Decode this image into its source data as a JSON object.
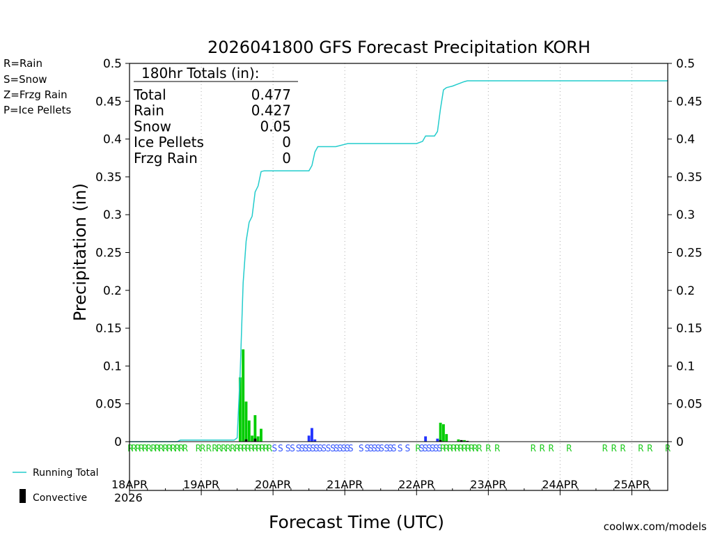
{
  "chart_data": {
    "type": "bar",
    "title": "2026041800 GFS Forecast Precipitation KORH",
    "xlabel": "Forecast Time (UTC)",
    "ylabel": "Precipitation (in)",
    "ylim": [
      0,
      0.5
    ],
    "xlim_hours": [
      0,
      180
    ],
    "y_ticks": [
      {
        "v": 0,
        "label": "0"
      },
      {
        "v": 0.05,
        "label": "0.05"
      },
      {
        "v": 0.1,
        "label": "0.1"
      },
      {
        "v": 0.15,
        "label": "0.15"
      },
      {
        "v": 0.2,
        "label": "0.2"
      },
      {
        "v": 0.25,
        "label": "0.25"
      },
      {
        "v": 0.3,
        "label": "0.3"
      },
      {
        "v": 0.35,
        "label": "0.35"
      },
      {
        "v": 0.4,
        "label": "0.4"
      },
      {
        "v": 0.45,
        "label": "0.45"
      },
      {
        "v": 0.5,
        "label": "0.5"
      }
    ],
    "x_ticks": [
      {
        "h": 0,
        "label": "18APR",
        "sub": "2026"
      },
      {
        "h": 24,
        "label": "19APR"
      },
      {
        "h": 48,
        "label": "20APR"
      },
      {
        "h": 72,
        "label": "21APR"
      },
      {
        "h": 96,
        "label": "22APR"
      },
      {
        "h": 120,
        "label": "23APR"
      },
      {
        "h": 144,
        "label": "24APR"
      },
      {
        "h": 168,
        "label": "25APR"
      }
    ],
    "legend": [
      {
        "label": "R=Rain",
        "color": "#22cc22"
      },
      {
        "label": "S=Snow",
        "color": "#3355ff"
      },
      {
        "label": "Z=Frzg Rain",
        "color": "#ff8833"
      },
      {
        "label": "P=Ice Pellets",
        "color": "#ee22aa"
      }
    ],
    "legend_bottom": {
      "running_total": "Running Total",
      "convective": "Convective"
    },
    "totals_box": {
      "header": "180hr Totals (in):",
      "rows": [
        {
          "label": "Total",
          "value": "0.477"
        },
        {
          "label": "Rain",
          "value": "0.427"
        },
        {
          "label": "Snow",
          "value": "0.05"
        },
        {
          "label": "Ice Pellets",
          "value": "0"
        },
        {
          "label": "Frzg Rain",
          "value": "0"
        }
      ]
    },
    "colors": {
      "rain": "#00cc00",
      "snow": "#2233ff",
      "convective": "#000000",
      "total": "#22cccc",
      "grid": "#aaaaaa"
    },
    "bars": [
      {
        "h": 37,
        "v": 0.085,
        "t": "rain"
      },
      {
        "h": 38,
        "v": 0.122,
        "t": "rain"
      },
      {
        "h": 39,
        "v": 0.053,
        "t": "rain"
      },
      {
        "h": 40,
        "v": 0.028,
        "t": "rain"
      },
      {
        "h": 41,
        "v": 0.008,
        "t": "rain"
      },
      {
        "h": 42,
        "v": 0.035,
        "t": "rain"
      },
      {
        "h": 43,
        "v": 0.007,
        "t": "rain"
      },
      {
        "h": 44,
        "v": 0.017,
        "t": "rain"
      },
      {
        "h": 60,
        "v": 0.008,
        "t": "snow"
      },
      {
        "h": 61,
        "v": 0.018,
        "t": "snow"
      },
      {
        "h": 62,
        "v": 0.003,
        "t": "snow"
      },
      {
        "h": 99,
        "v": 0.007,
        "t": "snow"
      },
      {
        "h": 103,
        "v": 0.004,
        "t": "snow"
      },
      {
        "h": 104,
        "v": 0.025,
        "t": "rain"
      },
      {
        "h": 105,
        "v": 0.023,
        "t": "rain"
      },
      {
        "h": 106,
        "v": 0.01,
        "t": "rain"
      },
      {
        "h": 110,
        "v": 0.003,
        "t": "rain"
      },
      {
        "h": 112,
        "v": 0.002,
        "t": "rain"
      }
    ],
    "convective_bars": [
      {
        "h": 39,
        "v": 0.003
      },
      {
        "h": 42,
        "v": 0.004
      },
      {
        "h": 104,
        "v": 0.002
      },
      {
        "h": 111,
        "v": 0.002
      },
      {
        "h": 113,
        "v": 0.001
      }
    ],
    "running_total": [
      [
        0,
        0.0
      ],
      [
        16,
        0.0
      ],
      [
        17,
        0.002
      ],
      [
        35,
        0.002
      ],
      [
        36,
        0.005
      ],
      [
        37,
        0.09
      ],
      [
        38,
        0.21
      ],
      [
        39,
        0.265
      ],
      [
        40,
        0.29
      ],
      [
        41,
        0.298
      ],
      [
        42,
        0.33
      ],
      [
        43,
        0.338
      ],
      [
        44,
        0.357
      ],
      [
        45,
        0.358
      ],
      [
        60,
        0.358
      ],
      [
        61,
        0.365
      ],
      [
        62,
        0.383
      ],
      [
        63,
        0.39
      ],
      [
        69,
        0.39
      ],
      [
        72,
        0.393
      ],
      [
        73,
        0.394
      ],
      [
        96,
        0.394
      ],
      [
        98,
        0.397
      ],
      [
        99,
        0.404
      ],
      [
        102,
        0.404
      ],
      [
        103,
        0.41
      ],
      [
        104,
        0.44
      ],
      [
        105,
        0.465
      ],
      [
        106,
        0.468
      ],
      [
        107,
        0.469
      ],
      [
        108,
        0.47
      ],
      [
        110,
        0.473
      ],
      [
        112,
        0.476
      ],
      [
        113,
        0.477
      ],
      [
        180,
        0.477
      ]
    ],
    "ptype_marks": [
      {
        "h": 0.3,
        "c": "R"
      },
      {
        "h": 1.5,
        "c": "R"
      },
      {
        "h": 2.8,
        "c": "R"
      },
      {
        "h": 4,
        "c": "R"
      },
      {
        "h": 5.2,
        "c": "R"
      },
      {
        "h": 6.5,
        "c": "R"
      },
      {
        "h": 8,
        "c": "R"
      },
      {
        "h": 9.3,
        "c": "R"
      },
      {
        "h": 10.6,
        "c": "R"
      },
      {
        "h": 12,
        "c": "R"
      },
      {
        "h": 13.3,
        "c": "R"
      },
      {
        "h": 14.6,
        "c": "R"
      },
      {
        "h": 16,
        "c": "R"
      },
      {
        "h": 17.3,
        "c": "R"
      },
      {
        "h": 18.6,
        "c": "R"
      },
      {
        "h": 23,
        "c": "R"
      },
      {
        "h": 24.5,
        "c": "R"
      },
      {
        "h": 26.5,
        "c": "R"
      },
      {
        "h": 28.5,
        "c": "R"
      },
      {
        "h": 30,
        "c": "R"
      },
      {
        "h": 31.5,
        "c": "R"
      },
      {
        "h": 33,
        "c": "R"
      },
      {
        "h": 34.5,
        "c": "R"
      },
      {
        "h": 36,
        "c": "R"
      },
      {
        "h": 37.2,
        "c": "R"
      },
      {
        "h": 38.4,
        "c": "R"
      },
      {
        "h": 39.6,
        "c": "R"
      },
      {
        "h": 40.8,
        "c": "R"
      },
      {
        "h": 42,
        "c": "R"
      },
      {
        "h": 43.2,
        "c": "R"
      },
      {
        "h": 44.4,
        "c": "R"
      },
      {
        "h": 45.6,
        "c": "R"
      },
      {
        "h": 46.8,
        "c": "R"
      },
      {
        "h": 48.5,
        "c": "S"
      },
      {
        "h": 50.5,
        "c": "S"
      },
      {
        "h": 53,
        "c": "S"
      },
      {
        "h": 54.5,
        "c": "S"
      },
      {
        "h": 56.5,
        "c": "S"
      },
      {
        "h": 57.7,
        "c": "S"
      },
      {
        "h": 58.9,
        "c": "S"
      },
      {
        "h": 60.1,
        "c": "S"
      },
      {
        "h": 61.3,
        "c": "S"
      },
      {
        "h": 62.5,
        "c": "S"
      },
      {
        "h": 63.7,
        "c": "S"
      },
      {
        "h": 65,
        "c": "S"
      },
      {
        "h": 66.5,
        "c": "S"
      },
      {
        "h": 68,
        "c": "S"
      },
      {
        "h": 69.2,
        "c": "S"
      },
      {
        "h": 70.4,
        "c": "S"
      },
      {
        "h": 71.6,
        "c": "S"
      },
      {
        "h": 72.8,
        "c": "S"
      },
      {
        "h": 74,
        "c": "S"
      },
      {
        "h": 77.5,
        "c": "S"
      },
      {
        "h": 79.5,
        "c": "S"
      },
      {
        "h": 80.7,
        "c": "S"
      },
      {
        "h": 81.9,
        "c": "S"
      },
      {
        "h": 83.1,
        "c": "S"
      },
      {
        "h": 84.3,
        "c": "S"
      },
      {
        "h": 86,
        "c": "S"
      },
      {
        "h": 87.2,
        "c": "S"
      },
      {
        "h": 88.4,
        "c": "S"
      },
      {
        "h": 90.5,
        "c": "S"
      },
      {
        "h": 93,
        "c": "S"
      },
      {
        "h": 96.5,
        "c": "R"
      },
      {
        "h": 97.7,
        "c": "S"
      },
      {
        "h": 98.9,
        "c": "S"
      },
      {
        "h": 100.1,
        "c": "S"
      },
      {
        "h": 101.3,
        "c": "S"
      },
      {
        "h": 102.5,
        "c": "S"
      },
      {
        "h": 103.7,
        "c": "S"
      },
      {
        "h": 104.8,
        "c": "R"
      },
      {
        "h": 106,
        "c": "R"
      },
      {
        "h": 107.2,
        "c": "R"
      },
      {
        "h": 108.4,
        "c": "R"
      },
      {
        "h": 109.6,
        "c": "R"
      },
      {
        "h": 110.8,
        "c": "R"
      },
      {
        "h": 112,
        "c": "R"
      },
      {
        "h": 113.2,
        "c": "R"
      },
      {
        "h": 114.4,
        "c": "R"
      },
      {
        "h": 115.6,
        "c": "R"
      },
      {
        "h": 117,
        "c": "R"
      },
      {
        "h": 120,
        "c": "R"
      },
      {
        "h": 123,
        "c": "R"
      },
      {
        "h": 135,
        "c": "R"
      },
      {
        "h": 138,
        "c": "R"
      },
      {
        "h": 141,
        "c": "R"
      },
      {
        "h": 147,
        "c": "R"
      },
      {
        "h": 159,
        "c": "R"
      },
      {
        "h": 162,
        "c": "R"
      },
      {
        "h": 165,
        "c": "R"
      },
      {
        "h": 171,
        "c": "R"
      },
      {
        "h": 174,
        "c": "R"
      },
      {
        "h": 180,
        "c": "R"
      }
    ]
  },
  "credit": "coolwx.com/models"
}
